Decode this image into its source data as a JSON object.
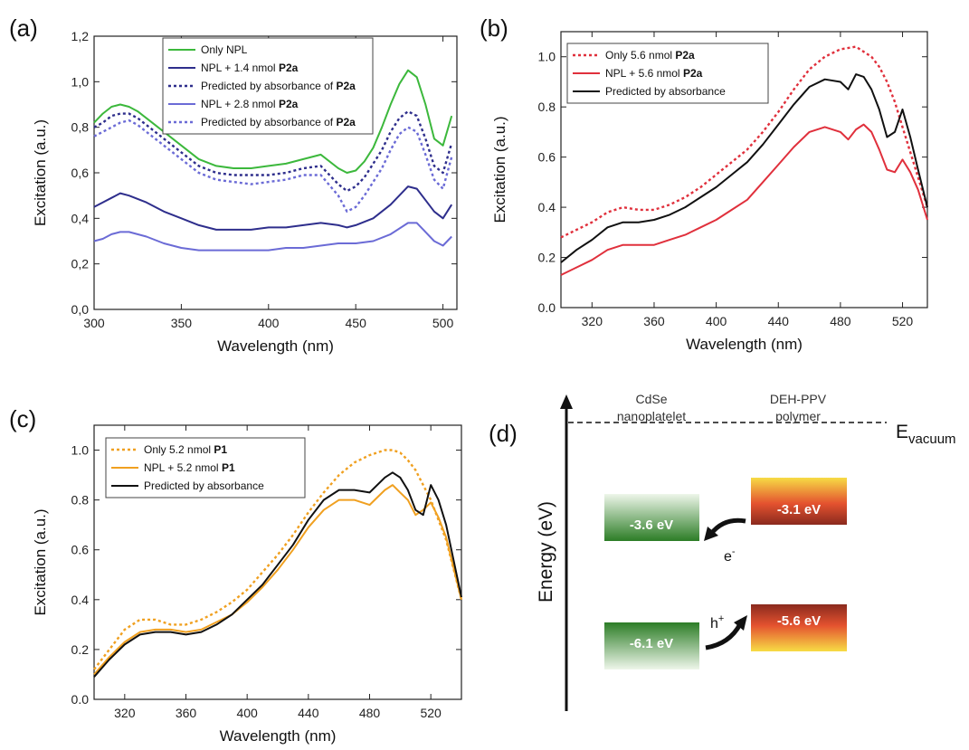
{
  "chart_data": [
    {
      "panel": "(a)",
      "type": "line",
      "xlabel": "Wavelength (nm)",
      "ylabel": "Excitation (a.u.)",
      "xlim": [
        300,
        508
      ],
      "ylim": [
        0,
        1.2
      ],
      "xticks": [
        300,
        350,
        400,
        450,
        500
      ],
      "yticks": [
        0.0,
        0.2,
        0.4,
        0.6,
        0.8,
        1.0,
        1.2
      ],
      "ytick_labels": [
        "0,0",
        "0,2",
        "0,4",
        "0,6",
        "0,8",
        "1,0",
        "1,2"
      ],
      "legend_position": "top-center",
      "series": [
        {
          "name": "Only NPL",
          "bold": "",
          "color": "#3cb83c",
          "dash": false,
          "x": [
            300,
            305,
            310,
            315,
            320,
            325,
            330,
            340,
            350,
            360,
            370,
            380,
            390,
            400,
            410,
            420,
            430,
            440,
            445,
            450,
            455,
            460,
            465,
            470,
            475,
            480,
            485,
            490,
            495,
            500,
            505
          ],
          "y": [
            0.82,
            0.86,
            0.89,
            0.9,
            0.89,
            0.87,
            0.84,
            0.78,
            0.72,
            0.66,
            0.63,
            0.62,
            0.62,
            0.63,
            0.64,
            0.66,
            0.68,
            0.62,
            0.6,
            0.61,
            0.65,
            0.71,
            0.8,
            0.9,
            0.99,
            1.05,
            1.02,
            0.9,
            0.75,
            0.72,
            0.85
          ]
        },
        {
          "name": "NPL + 1.4 nmol ",
          "bold": "P2a",
          "color": "#2e2e8c",
          "dash": false,
          "x": [
            300,
            305,
            310,
            315,
            320,
            330,
            340,
            350,
            360,
            370,
            380,
            390,
            400,
            410,
            420,
            430,
            440,
            445,
            450,
            460,
            470,
            480,
            485,
            490,
            495,
            500,
            505
          ],
          "y": [
            0.45,
            0.47,
            0.49,
            0.51,
            0.5,
            0.47,
            0.43,
            0.4,
            0.37,
            0.35,
            0.35,
            0.35,
            0.36,
            0.36,
            0.37,
            0.38,
            0.37,
            0.36,
            0.37,
            0.4,
            0.46,
            0.54,
            0.53,
            0.48,
            0.43,
            0.4,
            0.46
          ]
        },
        {
          "name": "Predicted by absorbance of ",
          "bold": "P2a",
          "color": "#2e2e8c",
          "dash": true,
          "x": [
            300,
            305,
            310,
            315,
            320,
            325,
            330,
            340,
            350,
            360,
            370,
            380,
            390,
            400,
            410,
            420,
            430,
            440,
            445,
            450,
            455,
            460,
            465,
            470,
            475,
            480,
            485,
            490,
            495,
            500,
            505
          ],
          "y": [
            0.8,
            0.82,
            0.85,
            0.86,
            0.86,
            0.84,
            0.81,
            0.75,
            0.69,
            0.63,
            0.6,
            0.59,
            0.59,
            0.59,
            0.6,
            0.62,
            0.63,
            0.55,
            0.52,
            0.54,
            0.58,
            0.64,
            0.7,
            0.78,
            0.84,
            0.87,
            0.85,
            0.75,
            0.63,
            0.6,
            0.73
          ]
        },
        {
          "name": "NPL + 2.8 nmol ",
          "bold": "P2a",
          "color": "#6b6bd6",
          "dash": false,
          "x": [
            300,
            305,
            310,
            315,
            320,
            330,
            340,
            350,
            360,
            370,
            380,
            390,
            400,
            410,
            420,
            430,
            440,
            450,
            460,
            470,
            480,
            485,
            490,
            495,
            500,
            505
          ],
          "y": [
            0.3,
            0.31,
            0.33,
            0.34,
            0.34,
            0.32,
            0.29,
            0.27,
            0.26,
            0.26,
            0.26,
            0.26,
            0.26,
            0.27,
            0.27,
            0.28,
            0.29,
            0.29,
            0.3,
            0.33,
            0.38,
            0.38,
            0.34,
            0.3,
            0.28,
            0.32
          ]
        },
        {
          "name": "Predicted by absorbance of ",
          "bold": "P2a",
          "color": "#6b6bd6",
          "dash": true,
          "x": [
            300,
            305,
            310,
            315,
            320,
            325,
            330,
            340,
            350,
            360,
            370,
            380,
            390,
            400,
            410,
            420,
            430,
            440,
            445,
            450,
            455,
            460,
            465,
            470,
            475,
            480,
            485,
            490,
            495,
            500,
            505
          ],
          "y": [
            0.76,
            0.78,
            0.8,
            0.82,
            0.83,
            0.81,
            0.78,
            0.72,
            0.66,
            0.6,
            0.57,
            0.56,
            0.55,
            0.56,
            0.57,
            0.59,
            0.59,
            0.5,
            0.43,
            0.45,
            0.5,
            0.56,
            0.62,
            0.7,
            0.77,
            0.8,
            0.78,
            0.68,
            0.57,
            0.53,
            0.67
          ]
        }
      ]
    },
    {
      "panel": "(b)",
      "type": "line",
      "xlabel": "Wavelength (nm)",
      "ylabel": "Excitation (a.u.)",
      "xlim": [
        300,
        536
      ],
      "ylim": [
        0,
        1.1
      ],
      "xticks": [
        320,
        360,
        400,
        440,
        480,
        520
      ],
      "yticks": [
        0.0,
        0.2,
        0.4,
        0.6,
        0.8,
        1.0
      ],
      "ytick_labels": [
        "0.0",
        "0.2",
        "0.4",
        "0.6",
        "0.8",
        "1.0"
      ],
      "legend_position": "top-left",
      "series": [
        {
          "name": "Only 5.6 nmol ",
          "bold": "P2a",
          "color": "#e0303c",
          "dash": true,
          "x": [
            300,
            310,
            320,
            330,
            340,
            350,
            360,
            370,
            380,
            390,
            400,
            410,
            420,
            430,
            440,
            450,
            460,
            470,
            480,
            490,
            500,
            505,
            510,
            515,
            520,
            525,
            530,
            536
          ],
          "y": [
            0.28,
            0.31,
            0.34,
            0.38,
            0.4,
            0.39,
            0.39,
            0.41,
            0.44,
            0.48,
            0.53,
            0.58,
            0.63,
            0.7,
            0.78,
            0.87,
            0.95,
            1.0,
            1.03,
            1.04,
            1.0,
            0.96,
            0.9,
            0.82,
            0.72,
            0.62,
            0.52,
            0.4
          ]
        },
        {
          "name": "NPL + 5.6 nmol ",
          "bold": "P2a",
          "color": "#e0303c",
          "dash": false,
          "x": [
            300,
            310,
            320,
            330,
            340,
            350,
            360,
            370,
            380,
            390,
            400,
            410,
            420,
            430,
            440,
            450,
            460,
            470,
            480,
            485,
            490,
            495,
            500,
            505,
            510,
            515,
            520,
            525,
            530,
            536
          ],
          "y": [
            0.13,
            0.16,
            0.19,
            0.23,
            0.25,
            0.25,
            0.25,
            0.27,
            0.29,
            0.32,
            0.35,
            0.39,
            0.43,
            0.5,
            0.57,
            0.64,
            0.7,
            0.72,
            0.7,
            0.67,
            0.71,
            0.73,
            0.7,
            0.63,
            0.55,
            0.54,
            0.59,
            0.54,
            0.47,
            0.35
          ]
        },
        {
          "name": "Predicted by absorbance",
          "bold": "",
          "color": "#111111",
          "dash": false,
          "x": [
            300,
            310,
            320,
            330,
            340,
            350,
            360,
            370,
            380,
            390,
            400,
            410,
            420,
            430,
            440,
            450,
            460,
            470,
            480,
            485,
            490,
            495,
            500,
            505,
            510,
            515,
            520,
            525,
            530,
            536
          ],
          "y": [
            0.18,
            0.23,
            0.27,
            0.32,
            0.34,
            0.34,
            0.35,
            0.37,
            0.4,
            0.44,
            0.48,
            0.53,
            0.58,
            0.65,
            0.73,
            0.81,
            0.88,
            0.91,
            0.9,
            0.87,
            0.93,
            0.92,
            0.87,
            0.79,
            0.68,
            0.7,
            0.79,
            0.68,
            0.55,
            0.4
          ]
        }
      ]
    },
    {
      "panel": "(c)",
      "type": "line",
      "xlabel": "Wavelength (nm)",
      "ylabel": "Excitation (a.u.)",
      "xlim": [
        300,
        540
      ],
      "ylim": [
        0,
        1.1
      ],
      "xticks": [
        320,
        360,
        400,
        440,
        480,
        520
      ],
      "yticks": [
        0.0,
        0.2,
        0.4,
        0.6,
        0.8,
        1.0
      ],
      "ytick_labels": [
        "0.0",
        "0.2",
        "0.4",
        "0.6",
        "0.8",
        "1.0"
      ],
      "legend_position": "top-left",
      "series": [
        {
          "name": "Only 5.2 nmol ",
          "bold": "P1",
          "color": "#f0a020",
          "dash": true,
          "x": [
            300,
            310,
            320,
            330,
            340,
            350,
            360,
            370,
            380,
            390,
            400,
            410,
            420,
            430,
            440,
            450,
            460,
            470,
            480,
            490,
            495,
            500,
            505,
            510,
            515,
            520,
            525,
            530,
            540
          ],
          "y": [
            0.12,
            0.2,
            0.28,
            0.32,
            0.32,
            0.3,
            0.3,
            0.32,
            0.35,
            0.39,
            0.44,
            0.51,
            0.58,
            0.66,
            0.75,
            0.83,
            0.9,
            0.95,
            0.98,
            1.0,
            1.0,
            0.99,
            0.96,
            0.92,
            0.86,
            0.8,
            0.72,
            0.64,
            0.4
          ]
        },
        {
          "name": "NPL + 5.2 nmol ",
          "bold": "P1",
          "color": "#f0a020",
          "dash": false,
          "x": [
            300,
            310,
            320,
            330,
            340,
            350,
            360,
            370,
            380,
            390,
            400,
            410,
            420,
            430,
            440,
            450,
            460,
            470,
            480,
            490,
            495,
            500,
            505,
            510,
            515,
            520,
            525,
            530,
            540
          ],
          "y": [
            0.1,
            0.17,
            0.23,
            0.27,
            0.28,
            0.28,
            0.27,
            0.28,
            0.31,
            0.34,
            0.39,
            0.45,
            0.52,
            0.6,
            0.69,
            0.76,
            0.8,
            0.8,
            0.78,
            0.84,
            0.86,
            0.83,
            0.8,
            0.74,
            0.76,
            0.79,
            0.73,
            0.65,
            0.4
          ]
        },
        {
          "name": "Predicted by absorbance",
          "bold": "",
          "color": "#111111",
          "dash": false,
          "x": [
            300,
            310,
            320,
            330,
            340,
            350,
            360,
            370,
            380,
            390,
            400,
            410,
            420,
            430,
            440,
            450,
            460,
            470,
            480,
            490,
            495,
            500,
            505,
            510,
            515,
            520,
            525,
            530,
            540
          ],
          "y": [
            0.09,
            0.16,
            0.22,
            0.26,
            0.27,
            0.27,
            0.26,
            0.27,
            0.3,
            0.34,
            0.4,
            0.46,
            0.54,
            0.62,
            0.72,
            0.8,
            0.84,
            0.84,
            0.83,
            0.89,
            0.91,
            0.89,
            0.84,
            0.76,
            0.74,
            0.86,
            0.8,
            0.7,
            0.41
          ]
        }
      ]
    }
  ],
  "diagram": {
    "panel": "(d)",
    "ylabel": "Energy (eV)",
    "vacuum_label": "E",
    "vacuum_sub": "vacuum",
    "left_header_1": "CdSe",
    "left_header_2": "nanoplatelet",
    "right_header_1": "DEH-PPV",
    "right_header_2": "polymer",
    "cdse_lumo": "-3.6 eV",
    "cdse_homo": "-6.1 eV",
    "poly_lumo": "-3.1 eV",
    "poly_homo": "-5.6 eV",
    "electron": "e",
    "electron_sup": "-",
    "hole": "h",
    "hole_sup": "+",
    "colors": {
      "green": "#2e8b2e",
      "red": "#d43a3a",
      "yellow": "#f5d23a"
    }
  }
}
